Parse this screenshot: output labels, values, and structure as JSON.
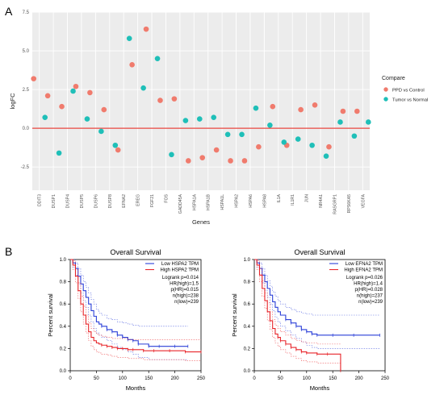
{
  "panels": {
    "a": {
      "letter": "A"
    },
    "b": {
      "letter": "B"
    }
  },
  "colors": {
    "ppd": "#f07b6d",
    "tumor": "#1fbfb8",
    "zero_line": "#e8463f",
    "panel_bg": "#ececec",
    "grid_major": "#ffffff",
    "low_group": "#2a3fd8",
    "high_group": "#e8252a"
  },
  "chart_data": [
    {
      "type": "scatter",
      "title": "",
      "xlabel": "Genes",
      "ylabel": "logFC",
      "ylim": [
        -4.0,
        7.5
      ],
      "yticks": [
        -2.5,
        0.0,
        2.5,
        5.0,
        7.5
      ],
      "ytick_labels": [
        "-2.5",
        "0.0",
        "2.5",
        "5.0",
        "7.5"
      ],
      "grid": true,
      "reference_line_y": 0,
      "categories": [
        "DDIT3",
        "DUSP1",
        "DUSP4",
        "DUSP5",
        "DUSP6",
        "DUSP8",
        "EFNA2",
        "EREG",
        "FGF21",
        "FOS",
        "GADD45A",
        "HSPA1A",
        "HSPA1B",
        "HSPA1L",
        "HSPA2",
        "HSPA6",
        "HSPA8",
        "IL1A",
        "IL1R1",
        "JUN",
        "NR4A1",
        "RASGRP1",
        "RPS6KA5",
        "VEGFA"
      ],
      "legend": {
        "title": "Compare",
        "position": "right",
        "entries": [
          "PPD vs Control",
          "Tumor vs Normal"
        ]
      },
      "series": [
        {
          "name": "PPD vs Control",
          "values": [
            3.2,
            2.1,
            1.4,
            2.7,
            2.3,
            1.2,
            -1.4,
            4.1,
            6.4,
            1.8,
            1.9,
            -2.1,
            -1.9,
            -1.4,
            -2.1,
            -2.1,
            -1.2,
            1.4,
            -1.1,
            1.2,
            1.5,
            -1.2,
            1.1,
            1.1
          ]
        },
        {
          "name": "Tumor vs Normal",
          "values": [
            0.7,
            -1.6,
            2.4,
            0.6,
            -0.2,
            -1.1,
            5.8,
            2.6,
            4.5,
            -1.7,
            0.5,
            0.6,
            0.7,
            -0.4,
            -0.4,
            1.3,
            0.2,
            -0.9,
            -0.7,
            -1.1,
            -1.8,
            0.4,
            -0.5,
            0.4
          ]
        }
      ]
    },
    {
      "type": "line",
      "title": "Overall Survival",
      "xlabel": "Months",
      "ylabel": "Percent survival",
      "xlim": [
        0,
        250
      ],
      "ylim": [
        0,
        1.0
      ],
      "xticks": [
        0,
        50,
        100,
        150,
        200,
        250
      ],
      "yticks": [
        0.0,
        0.2,
        0.4,
        0.6,
        0.8,
        1.0
      ],
      "xtick_labels": [
        "0",
        "50",
        "100",
        "150",
        "200",
        "250"
      ],
      "ytick_labels": [
        "0.0",
        "0.2",
        "0.4",
        "0.6",
        "0.8",
        "1.0"
      ],
      "legend_entries": [
        "Low HSPA2 TPM",
        "High HSPA2 TPM"
      ],
      "stats": [
        "Logrank p=0.014",
        "HR(high)=1.5",
        "p(HR)=0.015",
        "n(high)=238",
        "n(low)=239"
      ],
      "series": [
        {
          "name": "Low HSPA2 TPM",
          "x": [
            0,
            5,
            10,
            15,
            20,
            25,
            30,
            35,
            40,
            45,
            50,
            55,
            60,
            70,
            80,
            90,
            100,
            110,
            120,
            130,
            150,
            170,
            200,
            225
          ],
          "y": [
            1.0,
            0.97,
            0.92,
            0.85,
            0.78,
            0.72,
            0.66,
            0.6,
            0.54,
            0.49,
            0.44,
            0.42,
            0.4,
            0.37,
            0.35,
            0.32,
            0.3,
            0.28,
            0.27,
            0.24,
            0.22,
            0.22,
            0.22,
            0.22
          ],
          "upper": [
            1.0,
            1.0,
            0.97,
            0.92,
            0.86,
            0.8,
            0.75,
            0.7,
            0.64,
            0.6,
            0.55,
            0.52,
            0.5,
            0.47,
            0.46,
            0.44,
            0.43,
            0.42,
            0.41,
            0.4,
            0.4,
            0.4,
            0.4,
            0.4
          ],
          "lower": [
            1.0,
            0.93,
            0.86,
            0.78,
            0.7,
            0.63,
            0.57,
            0.5,
            0.44,
            0.38,
            0.34,
            0.32,
            0.3,
            0.27,
            0.24,
            0.21,
            0.19,
            0.17,
            0.15,
            0.12,
            0.1,
            0.1,
            0.1,
            0.1
          ]
        },
        {
          "name": "High HSPA2 TPM",
          "x": [
            0,
            5,
            10,
            15,
            20,
            25,
            30,
            35,
            40,
            45,
            50,
            55,
            60,
            70,
            80,
            90,
            100,
            110,
            120,
            140,
            160,
            190,
            220,
            250
          ],
          "y": [
            1.0,
            0.95,
            0.85,
            0.72,
            0.6,
            0.5,
            0.42,
            0.35,
            0.3,
            0.27,
            0.25,
            0.24,
            0.23,
            0.22,
            0.21,
            0.2,
            0.2,
            0.19,
            0.19,
            0.18,
            0.18,
            0.18,
            0.17,
            0.17
          ],
          "upper": [
            1.0,
            0.99,
            0.91,
            0.79,
            0.67,
            0.58,
            0.5,
            0.43,
            0.38,
            0.35,
            0.33,
            0.32,
            0.31,
            0.3,
            0.29,
            0.29,
            0.29,
            0.28,
            0.28,
            0.28,
            0.28,
            0.28,
            0.28,
            0.28
          ],
          "lower": [
            1.0,
            0.91,
            0.79,
            0.65,
            0.53,
            0.42,
            0.34,
            0.27,
            0.22,
            0.19,
            0.17,
            0.16,
            0.15,
            0.14,
            0.13,
            0.12,
            0.12,
            0.11,
            0.11,
            0.1,
            0.1,
            0.1,
            0.09,
            0.09
          ]
        }
      ]
    },
    {
      "type": "line",
      "title": "Overall Survival",
      "xlabel": "Months",
      "ylabel": "Percent survival",
      "xlim": [
        0,
        250
      ],
      "ylim": [
        0,
        1.0
      ],
      "xticks": [
        0,
        50,
        100,
        150,
        200,
        250
      ],
      "yticks": [
        0.0,
        0.2,
        0.4,
        0.6,
        0.8,
        1.0
      ],
      "xtick_labels": [
        "0",
        "50",
        "100",
        "150",
        "200",
        "250"
      ],
      "ytick_labels": [
        "0.0",
        "0.2",
        "0.4",
        "0.6",
        "0.8",
        "1.0"
      ],
      "legend_entries": [
        "Low EFNA2 TPM",
        "High EFNA2 TPM"
      ],
      "stats": [
        "Logrank p=0.026",
        "HR(high)=1.4",
        "p(HR)=0.028",
        "n(high)=237",
        "n(low)=239"
      ],
      "series": [
        {
          "name": "Low EFNA2 TPM",
          "x": [
            0,
            5,
            10,
            15,
            20,
            25,
            30,
            35,
            40,
            45,
            50,
            60,
            70,
            80,
            90,
            100,
            110,
            120,
            150,
            190,
            240
          ],
          "y": [
            1.0,
            0.97,
            0.92,
            0.86,
            0.8,
            0.74,
            0.68,
            0.62,
            0.57,
            0.53,
            0.5,
            0.46,
            0.43,
            0.4,
            0.37,
            0.35,
            0.33,
            0.32,
            0.32,
            0.32,
            0.32
          ],
          "upper": [
            1.0,
            1.0,
            0.97,
            0.92,
            0.86,
            0.81,
            0.76,
            0.71,
            0.67,
            0.63,
            0.6,
            0.57,
            0.55,
            0.53,
            0.52,
            0.51,
            0.5,
            0.5,
            0.5,
            0.5,
            0.5
          ],
          "lower": [
            1.0,
            0.93,
            0.86,
            0.79,
            0.72,
            0.66,
            0.6,
            0.54,
            0.48,
            0.44,
            0.4,
            0.36,
            0.32,
            0.29,
            0.26,
            0.23,
            0.21,
            0.2,
            0.2,
            0.2,
            0.2
          ]
        },
        {
          "name": "High EFNA2 TPM",
          "x": [
            0,
            5,
            10,
            15,
            20,
            25,
            30,
            35,
            40,
            45,
            50,
            60,
            70,
            80,
            90,
            100,
            120,
            140,
            165
          ],
          "y": [
            1.0,
            0.95,
            0.86,
            0.74,
            0.63,
            0.53,
            0.45,
            0.38,
            0.33,
            0.3,
            0.27,
            0.24,
            0.21,
            0.19,
            0.17,
            0.16,
            0.15,
            0.15,
            0.0
          ],
          "upper": [
            1.0,
            0.99,
            0.92,
            0.81,
            0.7,
            0.61,
            0.53,
            0.46,
            0.41,
            0.38,
            0.35,
            0.32,
            0.29,
            0.27,
            0.26,
            0.25,
            0.24,
            0.24,
            0.24
          ],
          "lower": [
            1.0,
            0.91,
            0.8,
            0.67,
            0.56,
            0.45,
            0.37,
            0.3,
            0.25,
            0.22,
            0.19,
            0.16,
            0.13,
            0.11,
            0.09,
            0.08,
            0.07,
            0.07,
            0.0
          ]
        }
      ]
    }
  ]
}
